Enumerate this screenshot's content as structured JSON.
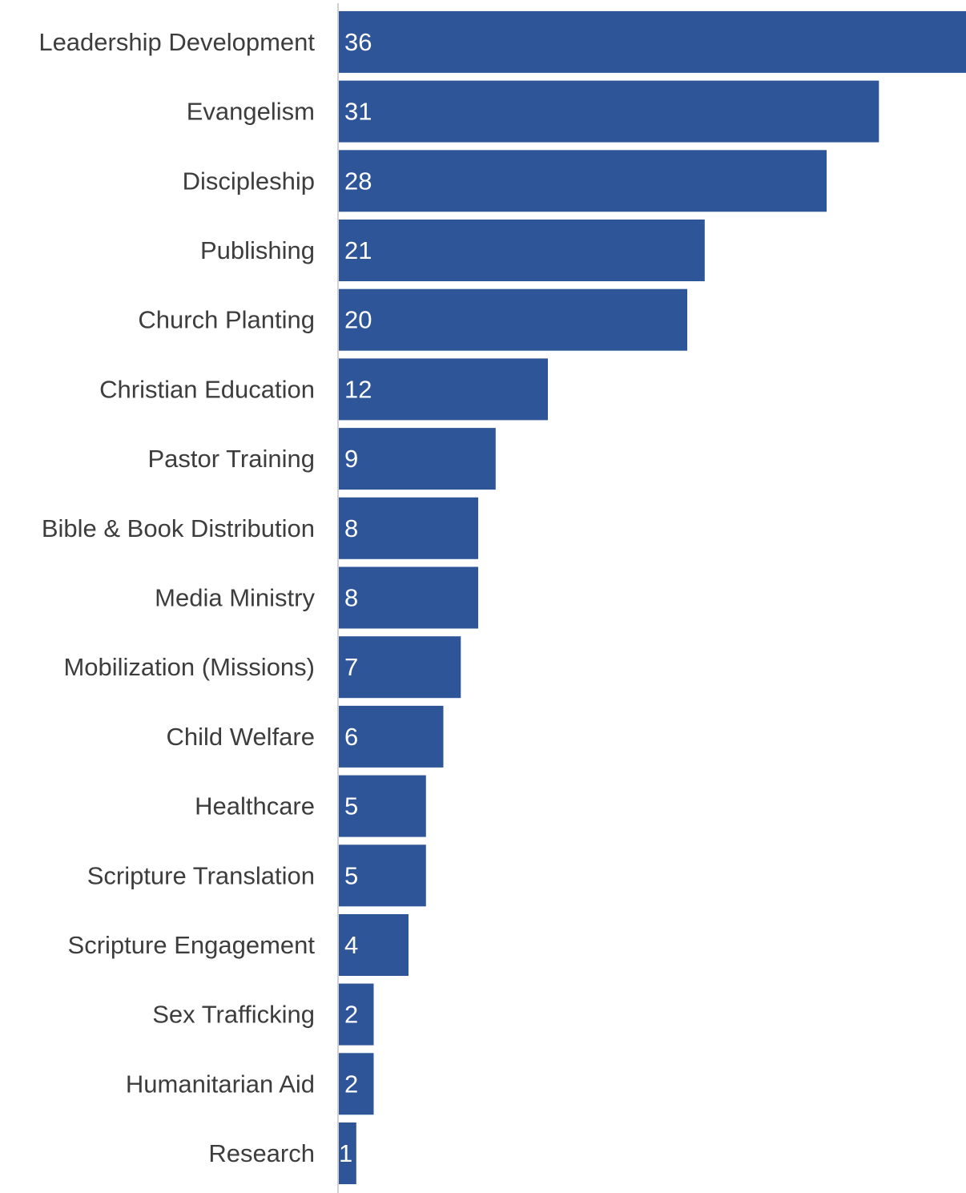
{
  "chart_data": {
    "type": "bar",
    "orientation": "horizontal",
    "categories": [
      "Leadership Development",
      "Evangelism",
      "Discipleship",
      "Publishing",
      "Church Planting",
      "Christian Education",
      "Pastor Training",
      "Bible & Book Distribution",
      "Media Ministry",
      "Mobilization (Missions)",
      "Child Welfare",
      "Healthcare",
      "Scripture Translation",
      "Scripture Engagement",
      "Sex Trafficking",
      "Humanitarian Aid",
      "Research"
    ],
    "values": [
      36,
      31,
      28,
      21,
      20,
      12,
      9,
      8,
      8,
      7,
      6,
      5,
      5,
      4,
      2,
      2,
      1
    ],
    "value_labels": [
      "36",
      "31",
      "28",
      "21",
      "20",
      "12",
      "9",
      "8",
      "8",
      "7",
      "6",
      "5",
      "5",
      "4",
      "2",
      "2",
      "1"
    ],
    "title": "",
    "xlabel": "",
    "ylabel": "",
    "xlim": [
      0,
      36
    ],
    "grid": false,
    "legend": "none",
    "data_labels": "inside-start",
    "colors": {
      "bar": "#2e5597",
      "category_text": "#3d3d3d",
      "value_text": "#ffffff",
      "axis_line": "#d0d0d0"
    }
  }
}
